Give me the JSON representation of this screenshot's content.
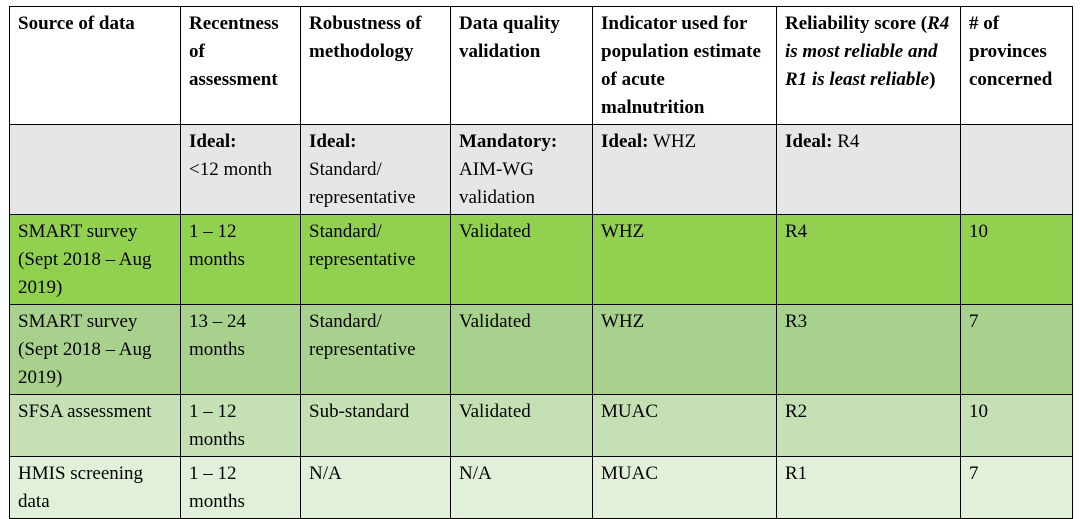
{
  "headers": {
    "source": "Source of data",
    "recentness": "Recentness of assessment",
    "robustness": "Robustness of methodology",
    "quality": "Data quality validation",
    "indicator": "Indicator used for population estimate of acute malnutrition",
    "reliability_a": "Reliability score (",
    "reliability_b": "R4 is most reliable and R1 is least reliable",
    "reliability_c": ")",
    "provinces": "# of provinces concerned"
  },
  "ideal": {
    "recentness_label": "Ideal:",
    "recentness_value": "<12 month",
    "robustness_label": "Ideal:",
    "robustness_value": "Standard/ representative",
    "quality_label": "Mandatory:",
    "quality_value": "AIM-WG validation",
    "indicator_label": "Ideal:",
    "indicator_value": " WHZ",
    "reliability_label": "Ideal:",
    "reliability_value": " R4"
  },
  "rows": [
    {
      "source": "SMART survey (Sept 2018 – Aug 2019)",
      "recentness": "1 – 12 months",
      "robustness": "Standard/ representative",
      "quality": "Validated",
      "indicator": "WHZ",
      "reliability": "R4",
      "provinces": "10"
    },
    {
      "source": "SMART survey (Sept 2018 – Aug 2019)",
      "recentness": "13 – 24 months",
      "robustness": "Standard/ representative",
      "quality": "Validated",
      "indicator": "WHZ",
      "reliability": "R3",
      "provinces": "7"
    },
    {
      "source": "SFSA assessment",
      "recentness": "1 – 12 months",
      "robustness": "Sub-standard",
      "quality": "Validated",
      "indicator": "MUAC",
      "reliability": "R2",
      "provinces": "10"
    },
    {
      "source": "HMIS screening data",
      "recentness": "1 – 12 months",
      "robustness": "N/A",
      "quality": "N/A",
      "indicator": "MUAC",
      "reliability": "R1",
      "provinces": "7"
    }
  ],
  "colors": {
    "ideal_row": "#e6e6e6",
    "smart_recent": "#92d050",
    "smart_older": "#a9d18e",
    "sfsa": "#c5e0b4",
    "hmis": "#e2f0d9"
  }
}
